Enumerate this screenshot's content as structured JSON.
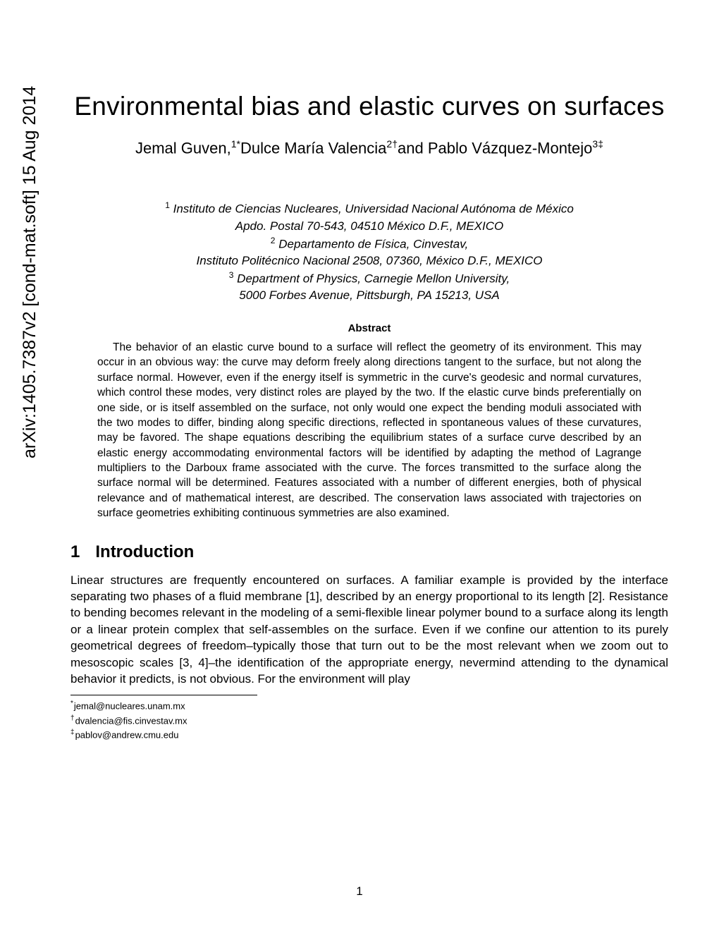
{
  "arxiv": {
    "id": "arXiv:1405.7387v2  [cond-mat.soft]  15 Aug 2014"
  },
  "paper": {
    "title": "Environmental bias and elastic curves on surfaces",
    "authors_html": "Jemal Guven,<sup>1*</sup>Dulce María Valencia<sup>2†</sup>and Pablo Vázquez-Montejo<sup>3‡</sup>",
    "affiliations_html": "<sup>1</sup> Instituto de Ciencias Nucleares, Universidad Nacional Autónoma de México<br>Apdo. Postal 70-543, 04510 México D.F., MEXICO<br><sup>2</sup> Departamento de Física, Cinvestav,<br>Instituto Politécnico Nacional 2508, 07360, México D.F., MEXICO<br><sup>3</sup> Department of Physics, Carnegie Mellon University,<br>5000 Forbes Avenue, Pittsburgh, PA 15213, USA",
    "abstract_heading": "Abstract",
    "abstract": "The behavior of an elastic curve bound to a surface will reflect the geometry of its environment. This may occur in an obvious way: the curve may deform freely along directions tangent to the surface, but not along the surface normal. However, even if the energy itself is symmetric in the curve's geodesic and normal curvatures, which control these modes, very distinct roles are played by the two. If the elastic curve binds preferentially on one side, or is itself assembled on the surface, not only would one expect the bending moduli associated with the two modes to differ, binding along specific directions, reflected in spontaneous values of these curvatures, may be favored. The shape equations describing the equilibrium states of a surface curve described by an elastic energy accommodating environmental factors will be identified by adapting the method of Lagrange multipliers to the Darboux frame associated with the curve. The forces transmitted to the surface along the surface normal will be determined. Features associated with a number of different energies, both of physical relevance and of mathematical interest, are described. The conservation laws associated with trajectories on surface geometries exhibiting continuous symmetries are also examined.",
    "section1": {
      "number": "1",
      "title": "Introduction",
      "body": "Linear structures are frequently encountered on surfaces. A familiar example is provided by the interface separating two phases of a fluid membrane [1], described by an energy proportional to its length [2]. Resistance to bending becomes relevant in the modeling of a semi-flexible linear polymer bound to a surface along its length or a linear protein complex that self-assembles on the surface. Even if we confine our attention to its purely geometrical degrees of freedom–typically those that turn out to be the most relevant when we zoom out to mesoscopic scales [3, 4]–the identification of the appropriate energy, nevermind attending to the dynamical behavior it predicts, is not obvious. For the environment will play"
    },
    "footnotes": [
      {
        "marker": "*",
        "text": "jemal@nucleares.unam.mx"
      },
      {
        "marker": "†",
        "text": "dvalencia@fis.cinvestav.mx"
      },
      {
        "marker": "‡",
        "text": "pablov@andrew.cmu.edu"
      }
    ],
    "page_number": "1"
  }
}
